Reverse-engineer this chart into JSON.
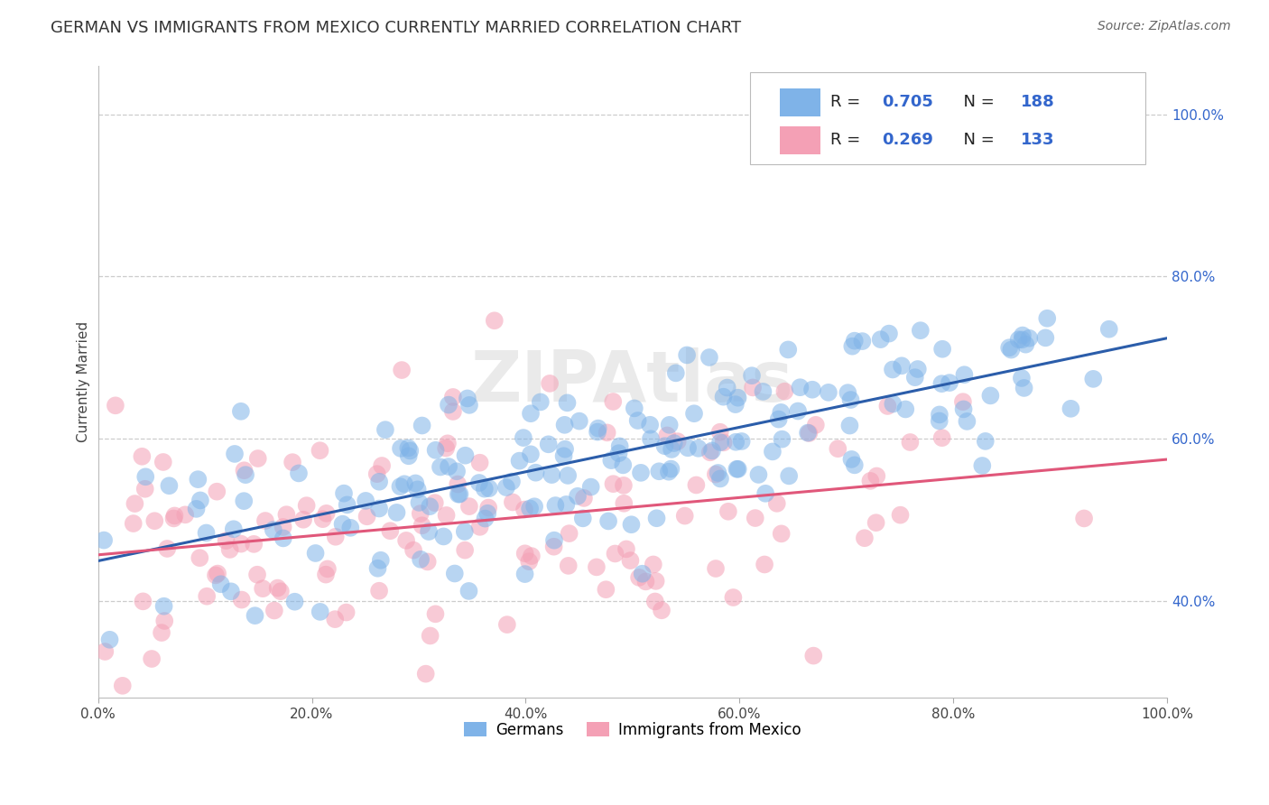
{
  "title": "GERMAN VS IMMIGRANTS FROM MEXICO CURRENTLY MARRIED CORRELATION CHART",
  "source": "Source: ZipAtlas.com",
  "ylabel_label": "Currently Married",
  "x_tick_labels": [
    "0.0%",
    "20.0%",
    "40.0%",
    "60.0%",
    "80.0%",
    "100.0%"
  ],
  "y_tick_labels": [
    "40.0%",
    "60.0%",
    "80.0%",
    "100.0%"
  ],
  "xlim": [
    0.0,
    1.0
  ],
  "ylim": [
    0.28,
    1.06
  ],
  "blue_R": 0.705,
  "blue_N": 188,
  "pink_R": 0.269,
  "pink_N": 133,
  "blue_color": "#7fb3e8",
  "pink_color": "#f4a0b5",
  "blue_line_color": "#2b5daa",
  "pink_line_color": "#e0577a",
  "legend_num_color": "#3366cc",
  "watermark": "ZIPAtlas",
  "legend_label_blue": "Germans",
  "legend_label_pink": "Immigrants from Mexico",
  "background_color": "#ffffff",
  "grid_color": "#cccccc",
  "title_fontsize": 13,
  "source_fontsize": 10,
  "axis_label_fontsize": 11,
  "tick_fontsize": 11,
  "blue_intercept": 0.455,
  "blue_slope": 0.265,
  "pink_intercept": 0.468,
  "pink_slope": 0.115
}
